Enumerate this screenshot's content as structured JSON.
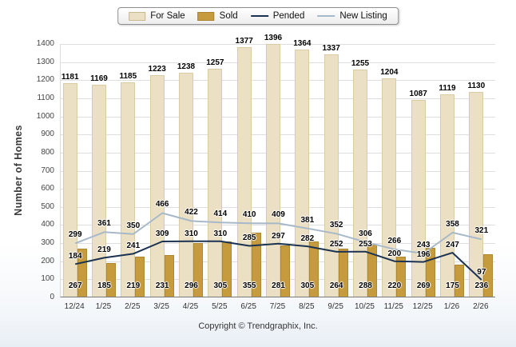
{
  "legend": {
    "items": [
      {
        "label": "For Sale",
        "type": "bar",
        "color": "#ECE0C4",
        "border": "#C9B98F"
      },
      {
        "label": "Sold",
        "type": "bar",
        "color": "#C59B3D",
        "border": "#A88430"
      },
      {
        "label": "Pended",
        "type": "line",
        "color": "#1B3351"
      },
      {
        "label": "New Listing",
        "type": "line",
        "color": "#A7B9C8"
      }
    ]
  },
  "chart_data": {
    "type": "bar",
    "subtype": "grouped bars with overlay lines",
    "title": "",
    "xlabel": "",
    "ylabel": "Number of Homes",
    "ylim": [
      0,
      1400
    ],
    "y_ticks": [
      0,
      100,
      200,
      300,
      400,
      500,
      600,
      700,
      800,
      900,
      1000,
      1100,
      1200,
      1300,
      1400
    ],
    "grid": true,
    "legend_position": "top",
    "categories": [
      "12/24",
      "1/25",
      "2/25",
      "3/25",
      "4/25",
      "5/25",
      "6/25",
      "7/25",
      "8/25",
      "9/25",
      "10/25",
      "11/25",
      "12/25",
      "1/26",
      "2/26"
    ],
    "series": [
      {
        "name": "For Sale",
        "type": "bar",
        "color": "#ECE0C4",
        "values": [
          1181,
          1169,
          1185,
          1223,
          1238,
          1257,
          1377,
          1396,
          1364,
          1337,
          1255,
          1204,
          1087,
          1119,
          1130
        ]
      },
      {
        "name": "Sold",
        "type": "bar",
        "color": "#C59B3D",
        "values": [
          267,
          185,
          219,
          231,
          296,
          305,
          355,
          281,
          305,
          264,
          288,
          220,
          269,
          175,
          236
        ]
      },
      {
        "name": "Pended",
        "type": "line",
        "color": "#1B3351",
        "values": [
          184,
          219,
          241,
          309,
          310,
          310,
          285,
          297,
          282,
          252,
          253,
          200,
          196,
          247,
          97
        ]
      },
      {
        "name": "New Listing",
        "type": "line",
        "color": "#A7B9C8",
        "values": [
          299,
          361,
          350,
          466,
          422,
          414,
          410,
          409,
          381,
          352,
          306,
          266,
          243,
          358,
          321
        ]
      }
    ]
  },
  "footer": {
    "copyright": "Copyright © Trendgraphix, Inc."
  }
}
